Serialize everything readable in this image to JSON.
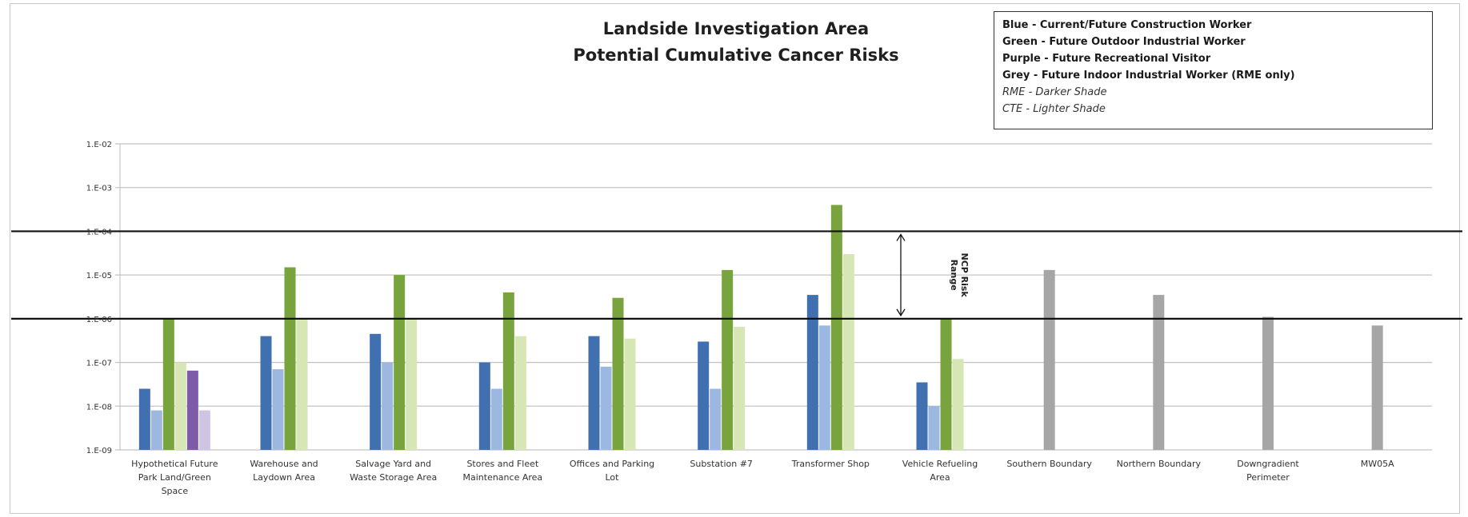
{
  "chart_data": {
    "type": "bar",
    "title_lines": [
      "Landside Investigation Area",
      "Potential Cumulative Cancer Risks"
    ],
    "y_scale": "log",
    "ylim": [
      1e-09,
      0.01
    ],
    "y_ticks": [
      "1.E-09",
      "1.E-08",
      "1.E-07",
      "1.E-06",
      "1.E-05",
      "1.E-04",
      "1.E-03",
      "1.E-02"
    ],
    "grid": true,
    "categories": [
      [
        "Hypothetical Future",
        "Park Land/Green",
        "Space"
      ],
      [
        "Warehouse and",
        "Laydown Area"
      ],
      [
        "Salvage Yard and",
        "Waste Storage Area"
      ],
      [
        "Stores and Fleet",
        "Maintenance Area"
      ],
      [
        "Offices and Parking",
        "Lot"
      ],
      [
        "Substation #7"
      ],
      [
        "Transformer Shop"
      ],
      [
        "Vehicle Refueling",
        "Area"
      ],
      [
        "Southern Boundary"
      ],
      [
        "Northern Boundary"
      ],
      [
        "Downgradient",
        "Perimeter"
      ],
      [
        "MW05A"
      ]
    ],
    "series": [
      {
        "key": "blue_rme",
        "color": "#4170b1",
        "values": [
          2.5e-08,
          4e-07,
          4.5e-07,
          1e-07,
          4e-07,
          3e-07,
          3.5e-06,
          3.5e-08,
          null,
          null,
          null,
          null
        ]
      },
      {
        "key": "blue_cte",
        "color": "#9db8e0",
        "values": [
          8e-09,
          7e-08,
          1e-07,
          2.5e-08,
          8e-08,
          2.5e-08,
          7e-07,
          1e-08,
          null,
          null,
          null,
          null
        ]
      },
      {
        "key": "green_rme",
        "color": "#79a33d",
        "values": [
          1e-06,
          1.5e-05,
          1e-05,
          4e-06,
          3e-06,
          1.3e-05,
          0.0004,
          1e-06,
          null,
          null,
          null,
          null
        ]
      },
      {
        "key": "green_cte",
        "color": "#d6e6b4",
        "values": [
          1e-07,
          1e-06,
          1e-06,
          4e-07,
          3.5e-07,
          6.5e-07,
          3e-05,
          1.2e-07,
          null,
          null,
          null,
          null
        ]
      },
      {
        "key": "purple_rme",
        "color": "#7d5ba8",
        "values": [
          6.5e-08,
          null,
          null,
          null,
          null,
          null,
          null,
          null,
          null,
          null,
          null,
          null
        ]
      },
      {
        "key": "purple_cte",
        "color": "#cfc4e4",
        "values": [
          8e-09,
          null,
          null,
          null,
          null,
          null,
          null,
          null,
          null,
          null,
          null,
          null
        ]
      },
      {
        "key": "grey_rme",
        "color": "#a6a6a6",
        "values": [
          null,
          null,
          null,
          null,
          null,
          null,
          null,
          null,
          1.3e-05,
          3.5e-06,
          1.1e-06,
          7e-07
        ]
      }
    ],
    "reference_lines": [
      0.0001,
      1e-06
    ],
    "annotation": {
      "text_lines": [
        "NCP Risk",
        "Range"
      ],
      "from": 0.0001,
      "to": 1e-06
    },
    "legend": {
      "placement": "top-right",
      "entries": [
        {
          "text": "Blue - Current/Future Construction Worker",
          "style": "bold"
        },
        {
          "text": "Green - Future Outdoor Industrial Worker",
          "style": "bold"
        },
        {
          "text": "Purple - Future Recreational Visitor",
          "style": "bold"
        },
        {
          "text": "Grey - Future Indoor Industrial Worker (RME only)",
          "style": "bold"
        },
        {
          "text": "RME - Darker Shade",
          "style": "italic"
        },
        {
          "text": "CTE - Lighter Shade",
          "style": "italic"
        }
      ]
    }
  }
}
